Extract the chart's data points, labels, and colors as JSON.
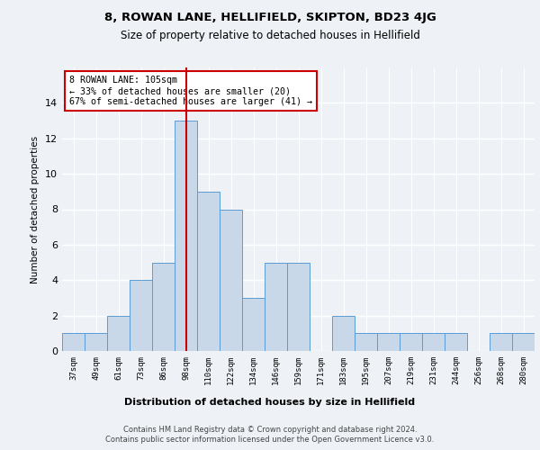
{
  "title1": "8, ROWAN LANE, HELLIFIELD, SKIPTON, BD23 4JG",
  "title2": "Size of property relative to detached houses in Hellifield",
  "xlabel": "Distribution of detached houses by size in Hellifield",
  "ylabel": "Number of detached properties",
  "categories": [
    "37sqm",
    "49sqm",
    "61sqm",
    "73sqm",
    "86sqm",
    "98sqm",
    "110sqm",
    "122sqm",
    "134sqm",
    "146sqm",
    "159sqm",
    "171sqm",
    "183sqm",
    "195sqm",
    "207sqm",
    "219sqm",
    "231sqm",
    "244sqm",
    "256sqm",
    "268sqm",
    "280sqm"
  ],
  "values": [
    1,
    1,
    2,
    4,
    5,
    13,
    9,
    8,
    3,
    5,
    5,
    0,
    2,
    1,
    1,
    1,
    1,
    1,
    0,
    1,
    1
  ],
  "bar_color": "#c8d8e8",
  "bar_edge_color": "#5b9bd5",
  "vline_index": 5,
  "vline_color": "#cc0000",
  "annotation_text": "8 ROWAN LANE: 105sqm\n← 33% of detached houses are smaller (20)\n67% of semi-detached houses are larger (41) →",
  "annotation_box_color": "#ffffff",
  "annotation_box_edge": "#cc0000",
  "ylim": [
    0,
    16
  ],
  "yticks": [
    0,
    2,
    4,
    6,
    8,
    10,
    12,
    14,
    16
  ],
  "footer1": "Contains HM Land Registry data © Crown copyright and database right 2024.",
  "footer2": "Contains public sector information licensed under the Open Government Licence v3.0.",
  "bg_color": "#eef2f7",
  "grid_color": "#ffffff"
}
